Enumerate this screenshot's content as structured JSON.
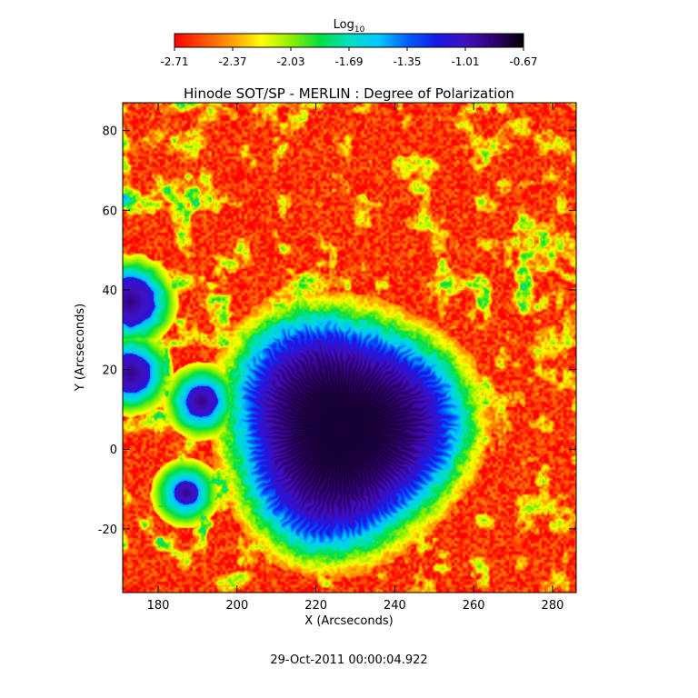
{
  "chart_data": {
    "type": "heatmap",
    "title": "Hinode SOT/SP - MERLIN : Degree of Polarization",
    "xlabel": "X (Arcseconds)",
    "ylabel": "Y (Arcseconds)",
    "xlim": [
      171,
      286
    ],
    "ylim": [
      -36,
      87
    ],
    "xticks": [
      180,
      200,
      220,
      240,
      260,
      280
    ],
    "yticks": [
      -20,
      0,
      20,
      40,
      60,
      80
    ],
    "colorbar": {
      "label_base": "Log",
      "label_sub": "10",
      "min": -2.71,
      "max": -0.67,
      "ticks": [
        "-2.71",
        "-2.37",
        "-2.03",
        "-1.69",
        "-1.35",
        "-1.01",
        "-0.67"
      ],
      "colormap": [
        "#ff0000",
        "#ff5000",
        "#ffa000",
        "#ffff00",
        "#90f000",
        "#00e040",
        "#00e0c0",
        "#00c8ff",
        "#0060ff",
        "#1818e8",
        "#4010c0",
        "#300070",
        "#000000"
      ]
    },
    "features": {
      "background_level": -2.6,
      "sunspot": {
        "center_x": 227,
        "center_y": 5,
        "radius_arcsec": 27,
        "core_level": -0.75
      },
      "pores": [
        {
          "x": 173,
          "y": 37,
          "r": 6
        },
        {
          "x": 173,
          "y": 19,
          "r": 5
        },
        {
          "x": 191,
          "y": 12,
          "r": 4
        },
        {
          "x": 187,
          "y": -11,
          "r": 3
        }
      ]
    },
    "footer": "29-Oct-2011 00:00:04.922"
  }
}
